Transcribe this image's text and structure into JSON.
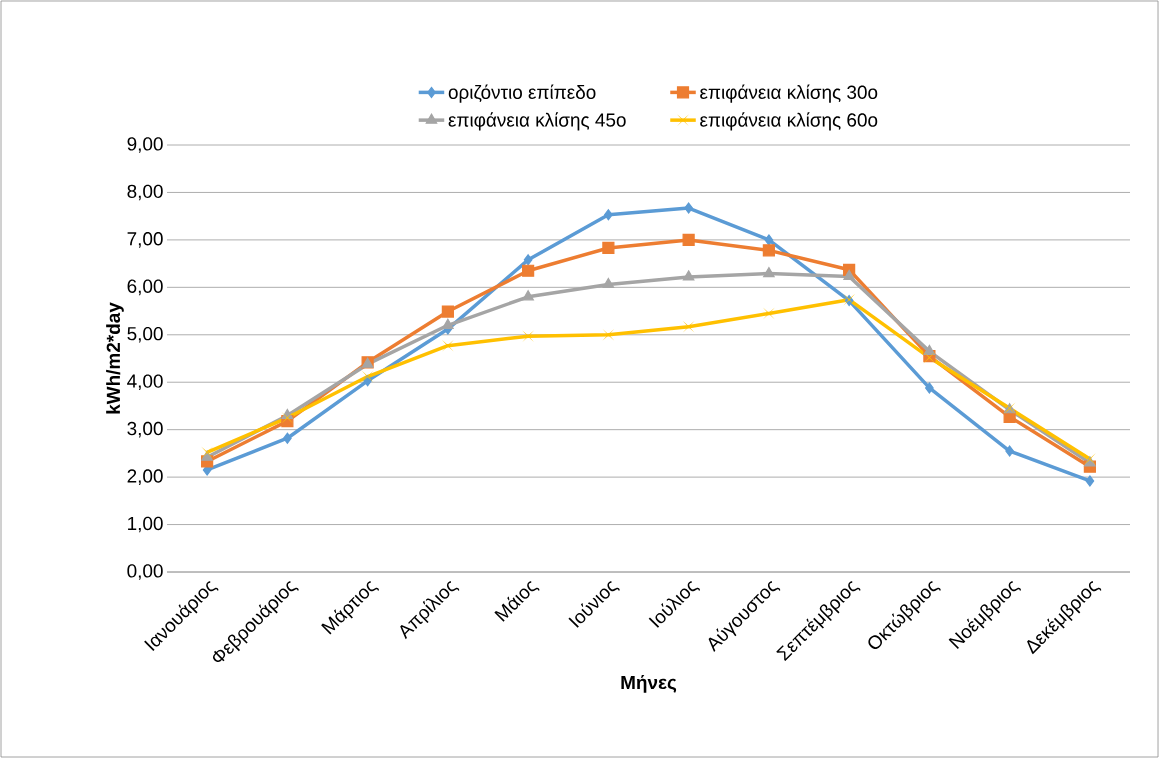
{
  "chart_data": {
    "type": "line",
    "xlabel": "Μήνες",
    "ylabel": "kWh/m2*day",
    "categories": [
      "Ιανουάριος",
      "Φεβρουάριος",
      "Μάρτιος",
      "Απρίλιος",
      "Μάιος",
      "Ιούνιος",
      "Ιούλιος",
      "Αύγουστος",
      "Σεπτέμβριος",
      "Οκτώβριος",
      "Νοέμβριος",
      "Δεκέμβριος"
    ],
    "series": [
      {
        "name": "οριζόντιο επίπεδο",
        "color": "#5b9bd5",
        "marker": "diamond",
        "values": [
          2.15,
          2.82,
          4.03,
          5.12,
          6.58,
          7.53,
          7.67,
          7.0,
          5.72,
          3.88,
          2.55,
          1.92
        ]
      },
      {
        "name": "επιφάνεια κλίσης 30ο",
        "color": "#ed7d31",
        "marker": "square",
        "values": [
          2.33,
          3.18,
          4.42,
          5.49,
          6.35,
          6.83,
          7.0,
          6.78,
          6.37,
          4.55,
          3.27,
          2.22
        ]
      },
      {
        "name": "επιφάνεια κλίσης 45ο",
        "color": "#a5a5a5",
        "marker": "triangle",
        "values": [
          2.42,
          3.3,
          4.38,
          5.2,
          5.8,
          6.06,
          6.22,
          6.29,
          6.23,
          4.65,
          3.42,
          2.3
        ]
      },
      {
        "name": "επιφάνεια κλίσης 60ο",
        "color": "#ffc000",
        "marker": "cross",
        "values": [
          2.52,
          3.25,
          4.12,
          4.77,
          4.97,
          5.0,
          5.17,
          5.45,
          5.74,
          4.52,
          3.45,
          2.38
        ]
      }
    ],
    "ylim": [
      0,
      9
    ],
    "yticks": [
      {
        "value": 0,
        "label": "0,00"
      },
      {
        "value": 1,
        "label": "1,00"
      },
      {
        "value": 2,
        "label": "2,00"
      },
      {
        "value": 3,
        "label": "3,00"
      },
      {
        "value": 4,
        "label": "4,00"
      },
      {
        "value": 5,
        "label": "5,00"
      },
      {
        "value": 6,
        "label": "6,00"
      },
      {
        "value": 7,
        "label": "7,00"
      },
      {
        "value": 8,
        "label": "8,00"
      },
      {
        "value": 9,
        "label": "9,00"
      }
    ],
    "grid": "y",
    "legend": "top",
    "line_style": "solid"
  }
}
